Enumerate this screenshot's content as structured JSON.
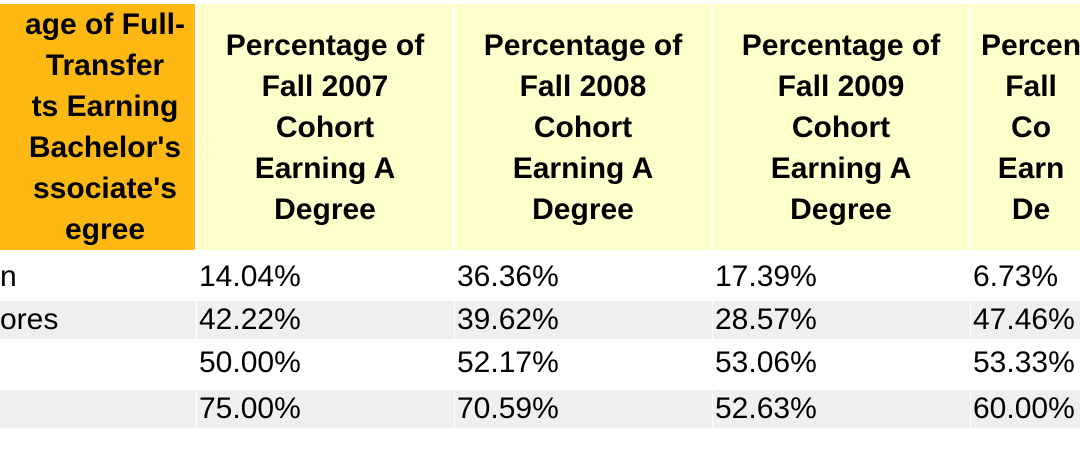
{
  "header": {
    "first": [
      "age of Full-",
      "Transfer",
      "ts Earning",
      "Bachelor's",
      "ssociate's",
      "egree"
    ],
    "columns": [
      [
        "Percentage of",
        "Fall 2007",
        "Cohort",
        "Earning A",
        "Degree"
      ],
      [
        "Percentage of",
        "Fall 2008",
        "Cohort",
        "Earning A",
        "Degree"
      ],
      [
        "Percentage of",
        "Fall 2009",
        "Cohort",
        "Earning A",
        "Degree"
      ],
      [
        "Percen",
        "Fall",
        "Co",
        "Earn",
        "De"
      ]
    ]
  },
  "rows": [
    {
      "label": "n",
      "values": [
        "14.04%",
        "36.36%",
        "17.39%",
        "6.73%"
      ]
    },
    {
      "label": "ores",
      "values": [
        "42.22%",
        "39.62%",
        "28.57%",
        "47.46%"
      ]
    },
    {
      "label": "",
      "values": [
        "50.00%",
        "52.17%",
        "53.06%",
        "53.33%"
      ]
    },
    {
      "label": "",
      "values": [
        "75.00%",
        "70.59%",
        "52.63%",
        "60.00%"
      ]
    }
  ]
}
